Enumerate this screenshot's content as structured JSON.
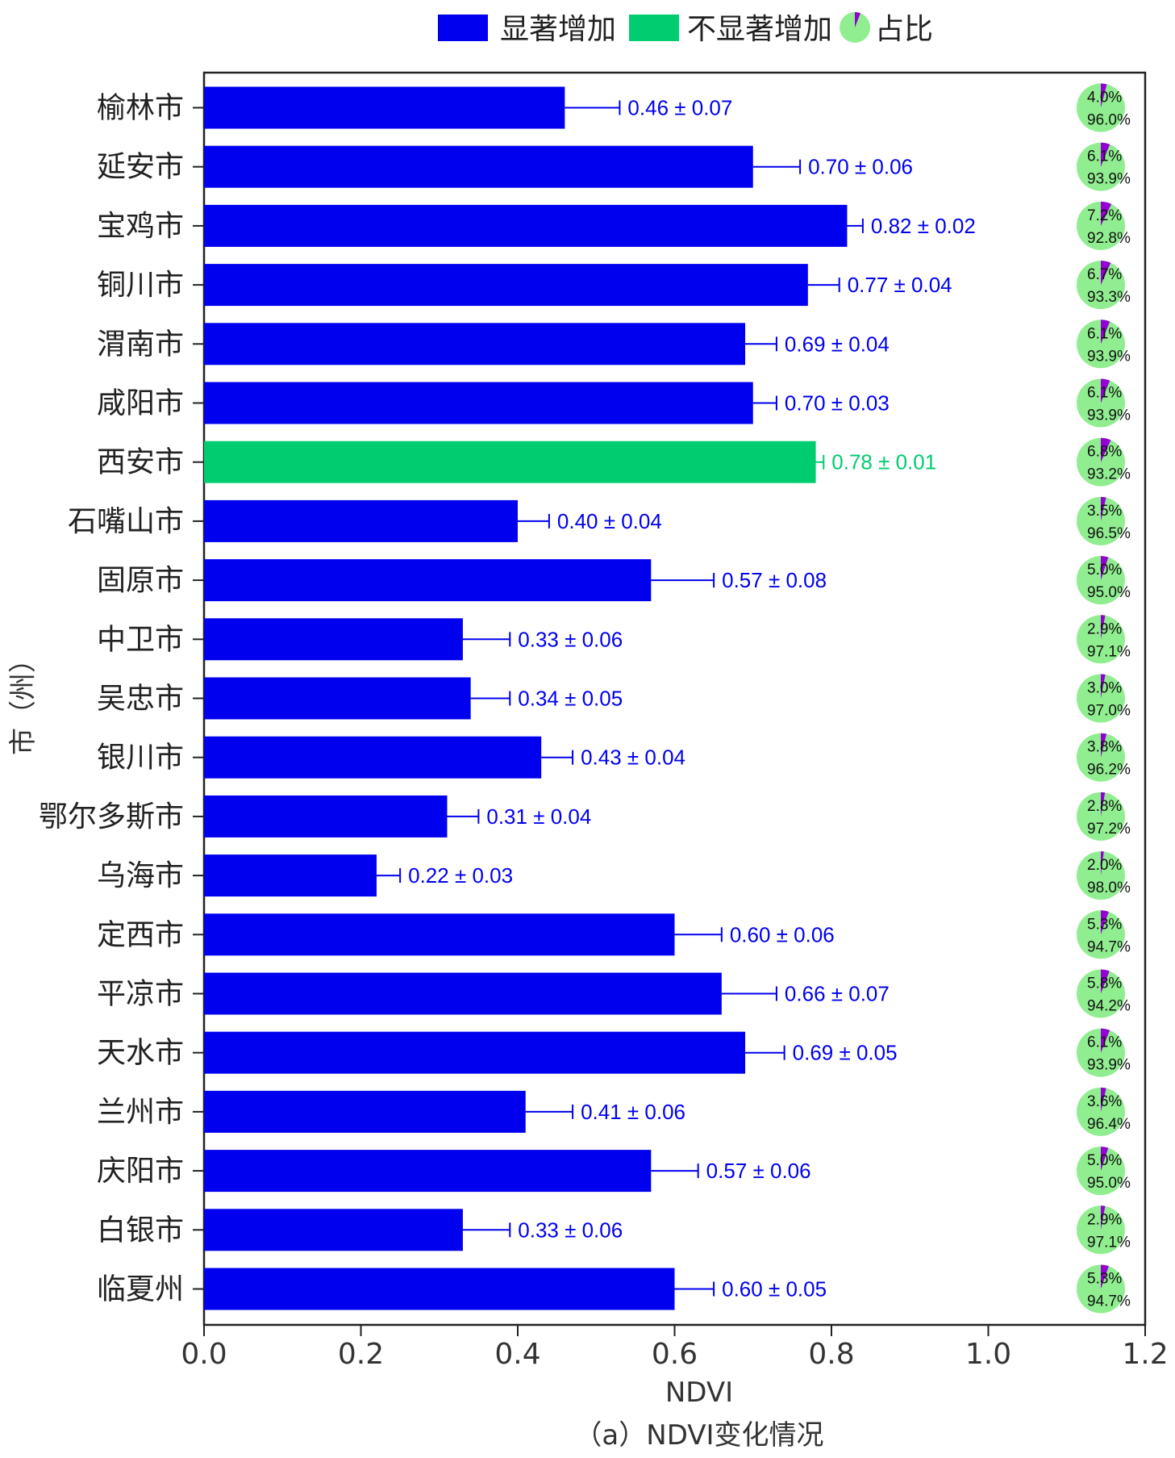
{
  "legend": {
    "significant": "显著增加",
    "not_significant": "不显著增加",
    "share": "占比"
  },
  "colors": {
    "significant": "#0000ee",
    "not_significant": "#00cc70",
    "pie_fill": "#90ee90",
    "pie_slice": "#9400d3"
  },
  "chart_data": {
    "type": "bar",
    "orientation": "horizontal",
    "categories": [
      "榆林市",
      "延安市",
      "宝鸡市",
      "铜川市",
      "渭南市",
      "咸阳市",
      "西安市",
      "石嘴山市",
      "固原市",
      "中卫市",
      "吴忠市",
      "银川市",
      "鄂尔多斯市",
      "乌海市",
      "定西市",
      "平凉市",
      "天水市",
      "兰州市",
      "庆阳市",
      "白银市",
      "临夏州"
    ],
    "values": [
      0.46,
      0.7,
      0.82,
      0.77,
      0.69,
      0.7,
      0.78,
      0.4,
      0.57,
      0.33,
      0.34,
      0.43,
      0.31,
      0.22,
      0.6,
      0.66,
      0.69,
      0.41,
      0.57,
      0.33,
      0.6
    ],
    "errors": [
      0.07,
      0.06,
      0.02,
      0.04,
      0.04,
      0.03,
      0.01,
      0.04,
      0.08,
      0.06,
      0.05,
      0.04,
      0.04,
      0.03,
      0.06,
      0.07,
      0.05,
      0.06,
      0.06,
      0.06,
      0.05
    ],
    "value_labels": [
      "0.46 ± 0.07",
      "0.70 ± 0.06",
      "0.82 ± 0.02",
      "0.77 ± 0.04",
      "0.69 ± 0.04",
      "0.70 ± 0.03",
      "0.78 ± 0.01",
      "0.40 ± 0.04",
      "0.57 ± 0.08",
      "0.33 ± 0.06",
      "0.34 ± 0.05",
      "0.43 ± 0.04",
      "0.31 ± 0.04",
      "0.22 ± 0.03",
      "0.60 ± 0.06",
      "0.66 ± 0.07",
      "0.69 ± 0.05",
      "0.41 ± 0.06",
      "0.57 ± 0.06",
      "0.33 ± 0.06",
      "0.60 ± 0.05"
    ],
    "significance": [
      "显著增加",
      "显著增加",
      "显著增加",
      "显著增加",
      "显著增加",
      "显著增加",
      "不显著增加",
      "显著增加",
      "显著增加",
      "显著增加",
      "显著增加",
      "显著增加",
      "显著增加",
      "显著增加",
      "显著增加",
      "显著增加",
      "显著增加",
      "显著增加",
      "显著增加",
      "显著增加",
      "显著增加"
    ],
    "pie_minor": [
      "4.0%",
      "6.1%",
      "7.2%",
      "6.7%",
      "6.1%",
      "6.1%",
      "6.8%",
      "3.5%",
      "5.0%",
      "2.9%",
      "3.0%",
      "3.8%",
      "2.8%",
      "2.0%",
      "5.3%",
      "5.8%",
      "6.1%",
      "3.6%",
      "5.0%",
      "2.9%",
      "5.3%"
    ],
    "pie_major": [
      "96.0%",
      "93.9%",
      "92.8%",
      "93.3%",
      "93.9%",
      "93.9%",
      "93.2%",
      "96.5%",
      "95.0%",
      "97.1%",
      "97.0%",
      "96.2%",
      "97.2%",
      "98.0%",
      "94.7%",
      "94.2%",
      "93.9%",
      "96.4%",
      "95.0%",
      "97.1%",
      "94.7%"
    ],
    "xlabel": "NDVI",
    "ylabel": "市（州）",
    "caption": "（a）NDVI变化情况",
    "xlim": [
      0.0,
      1.2
    ],
    "xticks": [
      "0.0",
      "0.2",
      "0.4",
      "0.6",
      "0.8",
      "1.0",
      "1.2"
    ],
    "grid": false,
    "legend_position": "top"
  }
}
